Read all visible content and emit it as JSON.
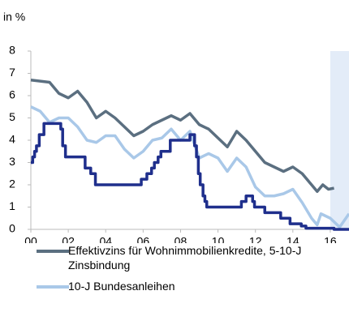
{
  "chart_data": {
    "type": "line",
    "y_axis_label": "in %",
    "xlim": [
      2000,
      2017
    ],
    "ylim": [
      0,
      8
    ],
    "yticks": [
      0,
      1,
      2,
      3,
      4,
      5,
      6,
      7,
      8
    ],
    "xticks": [
      {
        "value": 2000,
        "label": "00"
      },
      {
        "value": 2002,
        "label": "02"
      },
      {
        "value": 2004,
        "label": "04"
      },
      {
        "value": 2006,
        "label": "06"
      },
      {
        "value": 2008,
        "label": "08"
      },
      {
        "value": 2010,
        "label": "10"
      },
      {
        "value": 2012,
        "label": "12"
      },
      {
        "value": 2014,
        "label": "14"
      },
      {
        "value": 2016,
        "label": "16"
      }
    ],
    "grid": false,
    "highlight": {
      "x": [
        2016,
        2017
      ],
      "color": "#e3ecf8"
    },
    "series": [
      {
        "name": "Effektivzins für Wohnimmobilienkredite, 5-10-J Zinsbindung",
        "color": "#5b6f80",
        "x": [
          2000,
          2000.5,
          2001,
          2001.5,
          2002,
          2002.5,
          2003,
          2003.5,
          2004,
          2004.5,
          2005,
          2005.5,
          2006,
          2006.5,
          2007,
          2007.5,
          2008,
          2008.5,
          2009,
          2009.5,
          2010,
          2010.5,
          2011,
          2011.5,
          2012,
          2012.5,
          2013,
          2013.5,
          2014,
          2014.5,
          2015,
          2015.3,
          2015.6,
          2015.9,
          2016.2
        ],
        "values": [
          6.7,
          6.65,
          6.6,
          6.1,
          5.9,
          6.2,
          5.7,
          5.0,
          5.3,
          5.0,
          4.6,
          4.2,
          4.4,
          4.7,
          4.9,
          5.1,
          4.9,
          5.2,
          4.7,
          4.5,
          4.1,
          3.7,
          4.4,
          4.0,
          3.5,
          3.0,
          2.8,
          2.6,
          2.8,
          2.5,
          2.0,
          1.7,
          2.0,
          1.8,
          1.85
        ]
      },
      {
        "name": "10-J Bundesanleihen",
        "color": "#a9c8e8",
        "x": [
          2000,
          2000.5,
          2001,
          2001.5,
          2002,
          2002.5,
          2003,
          2003.5,
          2004,
          2004.5,
          2005,
          2005.5,
          2006,
          2006.5,
          2007,
          2007.5,
          2008,
          2008.5,
          2009,
          2009.5,
          2010,
          2010.5,
          2011,
          2011.5,
          2012,
          2012.5,
          2013,
          2013.5,
          2014,
          2014.5,
          2015,
          2015.3,
          2015.5,
          2016,
          2016.5,
          2017
        ],
        "values": [
          5.5,
          5.3,
          4.8,
          5.0,
          5.0,
          4.6,
          4.0,
          3.9,
          4.2,
          4.2,
          3.6,
          3.2,
          3.5,
          4.0,
          4.1,
          4.5,
          4.0,
          4.4,
          3.2,
          3.4,
          3.2,
          2.6,
          3.2,
          2.8,
          1.9,
          1.5,
          1.5,
          1.6,
          1.8,
          1.2,
          0.5,
          0.2,
          0.7,
          0.5,
          0.1,
          0.7
        ]
      },
      {
        "color": "#1f2f8c",
        "x": [
          2000,
          2000.1,
          2000.1,
          2000.2,
          2000.2,
          2000.3,
          2000.3,
          2000.45,
          2000.45,
          2000.7,
          2000.7,
          2001.6,
          2001.6,
          2001.7,
          2001.7,
          2001.85,
          2001.85,
          2002.9,
          2002.9,
          2003.2,
          2003.2,
          2003.45,
          2003.45,
          2005.9,
          2005.9,
          2006.2,
          2006.2,
          2006.45,
          2006.45,
          2006.6,
          2006.6,
          2006.8,
          2006.8,
          2006.95,
          2006.95,
          2007.45,
          2007.45,
          2008.5,
          2008.5,
          2008.75,
          2008.75,
          2008.85,
          2008.85,
          2008.95,
          2008.95,
          2009.05,
          2009.05,
          2009.2,
          2009.2,
          2009.3,
          2009.3,
          2009.4,
          2009.4,
          2011.25,
          2011.25,
          2011.5,
          2011.5,
          2011.85,
          2011.85,
          2011.95,
          2011.95,
          2012.5,
          2012.5,
          2013.35,
          2013.35,
          2013.85,
          2013.85,
          2014.45,
          2014.45,
          2014.7,
          2014.7,
          2016.2,
          2016.2,
          2017
        ],
        "values": [
          3.0,
          3.0,
          3.25,
          3.25,
          3.5,
          3.5,
          3.75,
          3.75,
          4.25,
          4.25,
          4.75,
          4.75,
          4.5,
          4.5,
          3.75,
          3.75,
          3.25,
          3.25,
          2.75,
          2.75,
          2.5,
          2.5,
          2.0,
          2.0,
          2.25,
          2.25,
          2.5,
          2.5,
          2.75,
          2.75,
          3.0,
          3.0,
          3.25,
          3.25,
          3.5,
          3.5,
          4.0,
          4.0,
          4.25,
          4.25,
          3.75,
          3.75,
          3.25,
          3.25,
          2.5,
          2.5,
          2.0,
          2.0,
          1.5,
          1.5,
          1.25,
          1.25,
          1.0,
          1.0,
          1.25,
          1.25,
          1.5,
          1.5,
          1.25,
          1.25,
          1.0,
          1.0,
          0.75,
          0.75,
          0.5,
          0.5,
          0.25,
          0.25,
          0.15,
          0.15,
          0.05,
          0.05,
          0,
          0
        ]
      }
    ]
  }
}
